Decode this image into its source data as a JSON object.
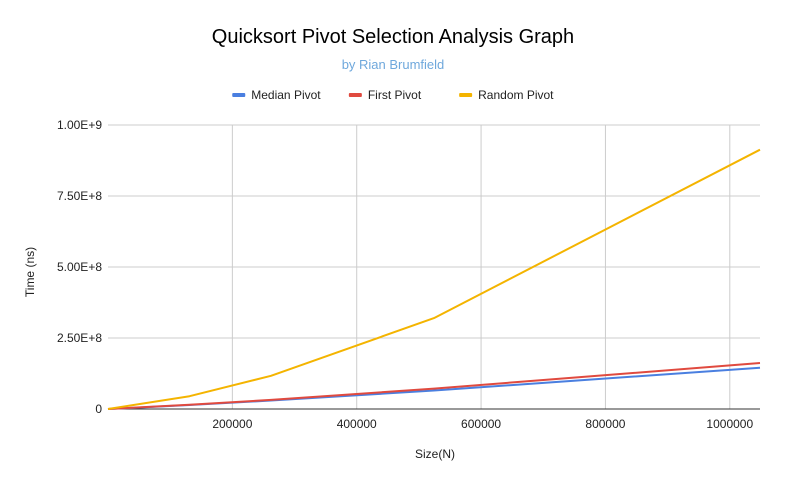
{
  "chart_data": {
    "type": "line",
    "title": "Quicksort Pivot Selection Analysis Graph",
    "subtitle": "by Rian Brumfield",
    "xlabel": "Size(N)",
    "ylabel": "Time (ns)",
    "xlim": [
      0,
      1048576
    ],
    "ylim": [
      0,
      1000000000
    ],
    "x_ticks": [
      200000,
      400000,
      600000,
      800000,
      1000000
    ],
    "x_tick_labels": [
      "200000",
      "400000",
      "600000",
      "800000",
      "1000000"
    ],
    "y_ticks": [
      0,
      250000000,
      500000000,
      750000000,
      1000000000
    ],
    "y_tick_labels": [
      "0",
      "2.50E+8",
      "5.00E+8",
      "7.50E+8",
      "1.00E+9"
    ],
    "grid": true,
    "legend_position": "top",
    "series": [
      {
        "name": "Median Pivot",
        "color": "#4a7fe0",
        "x": [
          0,
          131072,
          262144,
          524288,
          1048576
        ],
        "values": [
          0,
          14000000,
          30000000,
          65000000,
          145000000
        ]
      },
      {
        "name": "First Pivot",
        "color": "#e04a3f",
        "x": [
          0,
          131072,
          262144,
          524288,
          1048576
        ],
        "values": [
          0,
          15000000,
          32000000,
          72000000,
          162000000
        ]
      },
      {
        "name": "Random Pivot",
        "color": "#f4b400",
        "x": [
          0,
          131072,
          262144,
          524288,
          1048576
        ],
        "values": [
          0,
          45000000,
          117000000,
          320000000,
          913000000
        ]
      }
    ]
  },
  "colors": {
    "subtitle": "#6fa8dc",
    "grid": "#cccccc",
    "baseline": "#333333"
  }
}
